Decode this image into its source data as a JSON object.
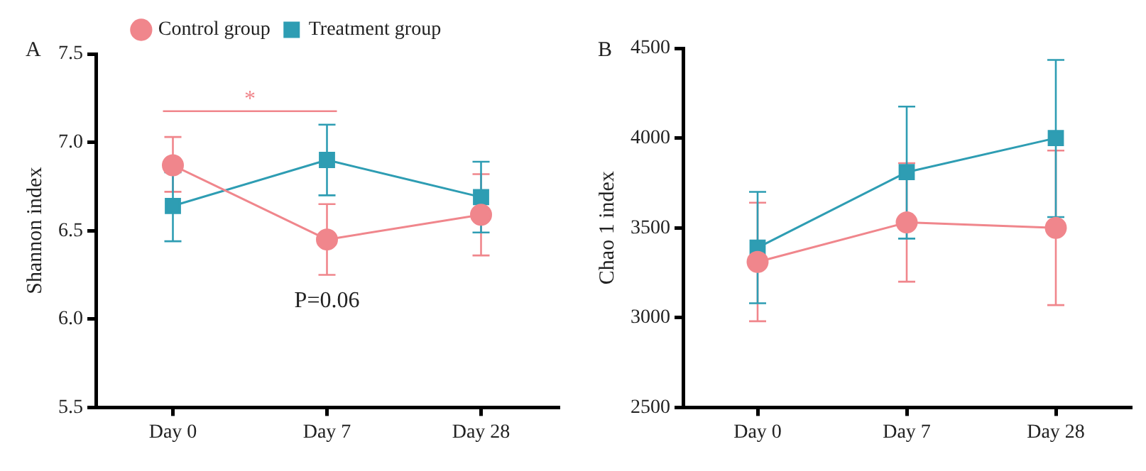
{
  "chart_data": [
    {
      "type": "line",
      "title": "A",
      "ylabel": "Shannon index",
      "categories": [
        "Day 0",
        "Day 7",
        "Day 28"
      ],
      "ylim": [
        5.5,
        7.5
      ],
      "yticks": [
        {
          "value": 5.5,
          "label": "5.5"
        },
        {
          "value": 6,
          "label": "6.0"
        },
        {
          "value": 6.5,
          "label": "6.5"
        },
        {
          "value": 7,
          "label": "7.0"
        },
        {
          "value": 7.5,
          "label": "7.5"
        }
      ],
      "grid": false,
      "legend": "top",
      "line_style": "solid",
      "series": [
        {
          "name": "Control group",
          "color": "#f0868c",
          "marker": "circle",
          "values": [
            6.87,
            6.45,
            6.59
          ],
          "errors": [
            [
              6.72,
              7.03
            ],
            [
              6.25,
              6.65
            ],
            [
              6.36,
              6.82
            ]
          ]
        },
        {
          "name": "Treatment group",
          "color": "#2e9db3",
          "marker": "square",
          "values": [
            6.64,
            6.9,
            6.69
          ],
          "errors": [
            [
              6.44,
              6.83
            ],
            [
              6.7,
              7.1
            ],
            [
              6.49,
              6.89
            ]
          ]
        }
      ],
      "annotations": [
        "*",
        "P=0.06"
      ]
    },
    {
      "type": "line",
      "title": "B",
      "ylabel": "Chao 1 index",
      "categories": [
        "Day 0",
        "Day 7",
        "Day 28"
      ],
      "ylim": [
        2500,
        4500
      ],
      "yticks": [
        2500,
        3000,
        3500,
        4000,
        4500
      ],
      "grid": false,
      "legend": false,
      "line_style": "solid",
      "series": [
        {
          "color": "#f0868c",
          "marker": "circle",
          "values": [
            3310,
            3530,
            3500
          ],
          "errors": [
            [
              2980,
              3640
            ],
            [
              3200,
              3860
            ],
            [
              3070,
              3930
            ]
          ]
        },
        {
          "color": "#2e9db3",
          "marker": "square",
          "values": [
            3390,
            3810,
            4000
          ],
          "errors": [
            [
              3080,
              3700
            ],
            [
              3440,
              4175
            ],
            [
              3560,
              4435
            ]
          ]
        }
      ]
    }
  ]
}
